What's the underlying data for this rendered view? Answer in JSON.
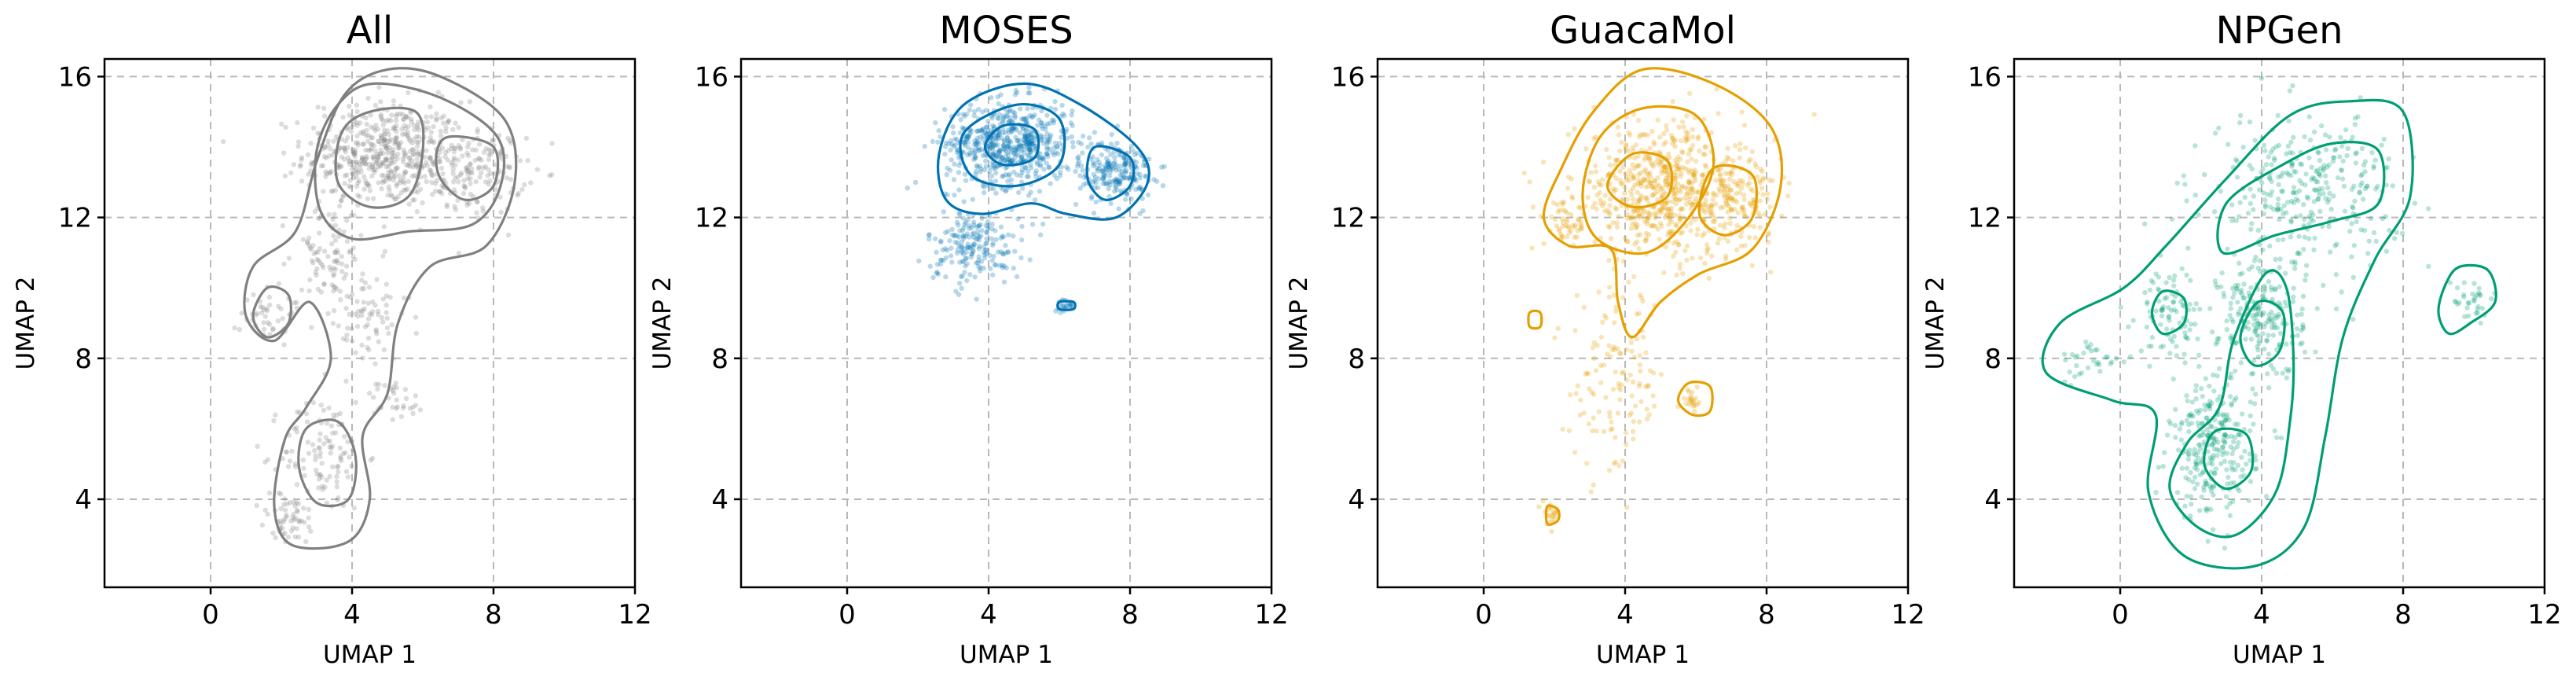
{
  "chart_data": [
    {
      "type": "scatter",
      "title": "All",
      "xlabel": "UMAP 1",
      "ylabel": "UMAP 2",
      "xlim": [
        -3,
        12
      ],
      "ylim": [
        1.5,
        16.5
      ],
      "xticks": [
        "0",
        "4",
        "8",
        "12"
      ],
      "xtick_values": [
        0,
        4,
        8,
        12
      ],
      "yticks": [
        "4",
        "8",
        "12",
        "16"
      ],
      "ytick_values": [
        4,
        8,
        12,
        16
      ],
      "grid": true,
      "color": "#808080",
      "clusters": [
        {
          "x": 4.9,
          "y": 13.8,
          "sx": 1.5,
          "sy": 1.0,
          "w": 0.48
        },
        {
          "x": 7.4,
          "y": 13.3,
          "sx": 1.0,
          "sy": 0.8,
          "w": 0.15
        },
        {
          "x": 3.3,
          "y": 11.0,
          "sx": 0.7,
          "sy": 0.9,
          "w": 0.07
        },
        {
          "x": 4.3,
          "y": 9.2,
          "sx": 0.9,
          "sy": 1.0,
          "w": 0.08
        },
        {
          "x": 1.6,
          "y": 9.3,
          "sx": 0.5,
          "sy": 0.6,
          "w": 0.04
        },
        {
          "x": 3.2,
          "y": 5.3,
          "sx": 0.8,
          "sy": 1.1,
          "w": 0.1
        },
        {
          "x": 2.2,
          "y": 3.4,
          "sx": 0.6,
          "sy": 0.5,
          "w": 0.05
        },
        {
          "x": 5.2,
          "y": 6.8,
          "sx": 0.6,
          "sy": 0.4,
          "w": 0.03
        }
      ],
      "contours": [
        [
          [
            5.0,
            16.2
          ],
          [
            6.5,
            16.0
          ],
          [
            8.3,
            14.8
          ],
          [
            8.6,
            13.0
          ],
          [
            7.8,
            11.2
          ],
          [
            6.2,
            10.6
          ],
          [
            5.3,
            9.0
          ],
          [
            5.0,
            7.0
          ],
          [
            4.3,
            5.8
          ],
          [
            4.5,
            4.0
          ],
          [
            3.9,
            2.8
          ],
          [
            2.3,
            2.7
          ],
          [
            1.8,
            3.8
          ],
          [
            2.1,
            5.7
          ],
          [
            2.7,
            6.6
          ],
          [
            3.4,
            8.0
          ],
          [
            2.8,
            9.6
          ],
          [
            1.8,
            8.5
          ],
          [
            1.0,
            9.2
          ],
          [
            1.2,
            10.6
          ],
          [
            2.4,
            11.6
          ],
          [
            3.0,
            13.6
          ],
          [
            3.8,
            15.5
          ]
        ],
        [
          [
            4.6,
            15.8
          ],
          [
            6.5,
            15.4
          ],
          [
            8.1,
            14.3
          ],
          [
            8.2,
            12.9
          ],
          [
            7.4,
            11.8
          ],
          [
            5.6,
            11.6
          ],
          [
            4.0,
            11.4
          ],
          [
            3.1,
            12.2
          ],
          [
            3.0,
            13.9
          ],
          [
            3.6,
            15.2
          ]
        ],
        [
          [
            4.5,
            15.0
          ],
          [
            5.8,
            15.0
          ],
          [
            6.0,
            13.9
          ],
          [
            5.6,
            12.6
          ],
          [
            4.5,
            12.3
          ],
          [
            3.6,
            13.0
          ],
          [
            3.7,
            14.4
          ]
        ],
        [
          [
            6.8,
            14.3
          ],
          [
            8.0,
            14.0
          ],
          [
            8.0,
            12.9
          ],
          [
            7.2,
            12.5
          ],
          [
            6.5,
            13.1
          ],
          [
            6.4,
            13.9
          ]
        ],
        [
          [
            3.6,
            6.2
          ],
          [
            4.1,
            5.2
          ],
          [
            3.9,
            4.0
          ],
          [
            3.0,
            3.9
          ],
          [
            2.5,
            4.9
          ],
          [
            2.7,
            6.0
          ]
        ],
        [
          [
            1.6,
            10.0
          ],
          [
            2.2,
            9.8
          ],
          [
            2.2,
            9.0
          ],
          [
            1.6,
            8.6
          ],
          [
            1.2,
            9.2
          ]
        ]
      ]
    },
    {
      "type": "scatter",
      "title": "MOSES",
      "xlabel": "UMAP 1",
      "ylabel": "UMAP 2",
      "xlim": [
        -3,
        12
      ],
      "ylim": [
        1.5,
        16.5
      ],
      "xticks": [
        "0",
        "4",
        "8",
        "12"
      ],
      "xtick_values": [
        0,
        4,
        8,
        12
      ],
      "yticks": [
        "4",
        "8",
        "12",
        "16"
      ],
      "ytick_values": [
        4,
        8,
        12,
        16
      ],
      "grid": true,
      "color": "#0072B2",
      "clusters": [
        {
          "x": 4.6,
          "y": 14.1,
          "sx": 1.2,
          "sy": 0.8,
          "w": 0.55
        },
        {
          "x": 7.6,
          "y": 13.3,
          "sx": 0.7,
          "sy": 0.6,
          "w": 0.2
        },
        {
          "x": 3.6,
          "y": 11.2,
          "sx": 0.9,
          "sy": 0.7,
          "w": 0.18
        },
        {
          "x": 6.2,
          "y": 9.5,
          "sx": 0.15,
          "sy": 0.12,
          "w": 0.02
        }
      ],
      "contours": [
        [
          [
            5.0,
            15.8
          ],
          [
            6.6,
            15.2
          ],
          [
            8.2,
            14.0
          ],
          [
            8.5,
            13.0
          ],
          [
            7.6,
            12.0
          ],
          [
            6.2,
            12.1
          ],
          [
            5.2,
            12.4
          ],
          [
            3.8,
            12.1
          ],
          [
            2.8,
            12.5
          ],
          [
            2.6,
            13.8
          ],
          [
            3.3,
            15.2
          ]
        ],
        [
          [
            4.8,
            15.2
          ],
          [
            6.0,
            14.8
          ],
          [
            6.0,
            13.5
          ],
          [
            4.8,
            12.9
          ],
          [
            3.5,
            13.2
          ],
          [
            3.3,
            14.4
          ]
        ],
        [
          [
            4.4,
            14.6
          ],
          [
            5.3,
            14.5
          ],
          [
            5.3,
            13.7
          ],
          [
            4.4,
            13.5
          ],
          [
            3.9,
            14.0
          ]
        ],
        [
          [
            7.0,
            14.0
          ],
          [
            8.0,
            13.7
          ],
          [
            8.0,
            12.9
          ],
          [
            7.3,
            12.5
          ],
          [
            6.8,
            13.1
          ]
        ],
        [
          [
            6.0,
            9.6
          ],
          [
            6.4,
            9.6
          ],
          [
            6.4,
            9.4
          ],
          [
            6.0,
            9.4
          ]
        ]
      ]
    },
    {
      "type": "scatter",
      "title": "GuacaMol",
      "xlabel": "UMAP 1",
      "ylabel": "UMAP 2",
      "xlim": [
        -3,
        12
      ],
      "ylim": [
        1.5,
        16.5
      ],
      "xticks": [
        "0",
        "4",
        "8",
        "12"
      ],
      "xtick_values": [
        0,
        4,
        8,
        12
      ],
      "yticks": [
        "4",
        "8",
        "12",
        "16"
      ],
      "ytick_values": [
        4,
        8,
        12,
        16
      ],
      "grid": true,
      "color": "#E69F00",
      "clusters": [
        {
          "x": 5.0,
          "y": 12.8,
          "sx": 1.6,
          "sy": 1.3,
          "w": 0.55
        },
        {
          "x": 7.0,
          "y": 12.5,
          "sx": 0.9,
          "sy": 0.8,
          "w": 0.15
        },
        {
          "x": 2.3,
          "y": 11.8,
          "sx": 0.4,
          "sy": 0.4,
          "w": 0.04
        },
        {
          "x": 3.8,
          "y": 7.3,
          "sx": 0.9,
          "sy": 1.8,
          "w": 0.12
        },
        {
          "x": 1.9,
          "y": 3.6,
          "sx": 0.15,
          "sy": 0.2,
          "w": 0.02
        },
        {
          "x": 5.9,
          "y": 6.8,
          "sx": 0.2,
          "sy": 0.2,
          "w": 0.02
        }
      ],
      "contours": [
        [
          [
            4.5,
            16.2
          ],
          [
            6.5,
            15.8
          ],
          [
            8.1,
            14.6
          ],
          [
            8.4,
            12.9
          ],
          [
            7.6,
            11.1
          ],
          [
            6.1,
            10.4
          ],
          [
            5.0,
            9.6
          ],
          [
            4.2,
            8.6
          ],
          [
            3.8,
            9.6
          ],
          [
            3.6,
            11.1
          ],
          [
            2.4,
            11.2
          ],
          [
            1.7,
            12.0
          ],
          [
            2.2,
            13.4
          ],
          [
            3.1,
            15.0
          ]
        ],
        [
          [
            4.5,
            15.1
          ],
          [
            6.0,
            14.9
          ],
          [
            6.5,
            13.5
          ],
          [
            5.8,
            12.0
          ],
          [
            4.6,
            11.0
          ],
          [
            3.2,
            11.4
          ],
          [
            2.8,
            12.7
          ],
          [
            3.3,
            14.3
          ]
        ],
        [
          [
            4.2,
            13.8
          ],
          [
            5.2,
            13.6
          ],
          [
            5.2,
            12.6
          ],
          [
            4.2,
            12.3
          ],
          [
            3.5,
            12.9
          ]
        ],
        [
          [
            6.5,
            13.4
          ],
          [
            7.6,
            13.2
          ],
          [
            7.6,
            12.0
          ],
          [
            6.8,
            11.5
          ],
          [
            6.1,
            12.1
          ]
        ],
        [
          [
            1.3,
            9.3
          ],
          [
            1.6,
            9.3
          ],
          [
            1.6,
            8.9
          ],
          [
            1.3,
            8.9
          ]
        ],
        [
          [
            5.8,
            7.3
          ],
          [
            6.4,
            7.2
          ],
          [
            6.4,
            6.5
          ],
          [
            5.9,
            6.4
          ],
          [
            5.5,
            6.8
          ]
        ],
        [
          [
            1.8,
            3.8
          ],
          [
            2.1,
            3.7
          ],
          [
            2.1,
            3.4
          ],
          [
            1.8,
            3.3
          ]
        ]
      ]
    },
    {
      "type": "scatter",
      "title": "NPGen",
      "xlabel": "UMAP 1",
      "ylabel": "UMAP 2",
      "xlim": [
        -3,
        12
      ],
      "ylim": [
        1.5,
        16.5
      ],
      "xticks": [
        "0",
        "4",
        "8",
        "12"
      ],
      "xtick_values": [
        0,
        4,
        8,
        12
      ],
      "yticks": [
        "4",
        "8",
        "12",
        "16"
      ],
      "ytick_values": [
        4,
        8,
        12,
        16
      ],
      "grid": true,
      "color": "#009E73",
      "clusters": [
        {
          "x": 5.2,
          "y": 12.8,
          "sx": 1.8,
          "sy": 1.4,
          "w": 0.3
        },
        {
          "x": 4.0,
          "y": 9.2,
          "sx": 0.8,
          "sy": 1.2,
          "w": 0.2
        },
        {
          "x": 2.6,
          "y": 5.4,
          "sx": 0.8,
          "sy": 1.3,
          "w": 0.25
        },
        {
          "x": 1.4,
          "y": 9.3,
          "sx": 0.6,
          "sy": 0.8,
          "w": 0.08
        },
        {
          "x": 10.0,
          "y": 9.6,
          "sx": 0.5,
          "sy": 0.5,
          "w": 0.03
        },
        {
          "x": -0.8,
          "y": 7.9,
          "sx": 0.6,
          "sy": 0.4,
          "w": 0.03
        }
      ],
      "contours": [
        [
          [
            6.5,
            15.3
          ],
          [
            8.0,
            15.0
          ],
          [
            8.2,
            12.6
          ],
          [
            7.2,
            10.8
          ],
          [
            6.3,
            8.6
          ],
          [
            5.8,
            5.8
          ],
          [
            5.2,
            3.2
          ],
          [
            3.8,
            2.1
          ],
          [
            1.8,
            2.4
          ],
          [
            0.8,
            4.2
          ],
          [
            1.0,
            6.4
          ],
          [
            -0.2,
            6.8
          ],
          [
            -2.1,
            7.6
          ],
          [
            -1.7,
            9.0
          ],
          [
            0.1,
            10.0
          ],
          [
            1.3,
            11.2
          ],
          [
            3.0,
            13.1
          ],
          [
            4.8,
            14.9
          ]
        ],
        [
          [
            6.0,
            14.1
          ],
          [
            7.3,
            13.9
          ],
          [
            7.3,
            12.4
          ],
          [
            6.0,
            11.9
          ],
          [
            4.4,
            11.5
          ],
          [
            2.9,
            11.0
          ],
          [
            3.0,
            12.4
          ],
          [
            4.6,
            13.5
          ]
        ],
        [
          [
            4.1,
            10.4
          ],
          [
            4.7,
            10.0
          ],
          [
            4.9,
            8.0
          ],
          [
            4.8,
            6.2
          ],
          [
            4.4,
            4.2
          ],
          [
            3.3,
            3.0
          ],
          [
            2.2,
            3.2
          ],
          [
            1.4,
            4.3
          ],
          [
            1.9,
            5.6
          ],
          [
            2.8,
            6.6
          ],
          [
            3.2,
            8.5
          ]
        ],
        [
          [
            3.9,
            9.6
          ],
          [
            4.6,
            9.3
          ],
          [
            4.5,
            8.2
          ],
          [
            3.8,
            7.8
          ],
          [
            3.4,
            8.6
          ]
        ],
        [
          [
            2.9,
            6.0
          ],
          [
            3.6,
            5.8
          ],
          [
            3.7,
            4.8
          ],
          [
            3.0,
            4.3
          ],
          [
            2.4,
            4.9
          ],
          [
            2.5,
            5.7
          ]
        ],
        [
          [
            9.6,
            10.6
          ],
          [
            10.4,
            10.5
          ],
          [
            10.6,
            9.6
          ],
          [
            9.9,
            9.0
          ],
          [
            9.3,
            8.7
          ],
          [
            9.0,
            9.3
          ],
          [
            9.2,
            10.1
          ]
        ],
        [
          [
            1.2,
            9.9
          ],
          [
            1.8,
            9.7
          ],
          [
            1.8,
            9.0
          ],
          [
            1.2,
            8.7
          ],
          [
            0.9,
            9.3
          ]
        ]
      ]
    }
  ]
}
